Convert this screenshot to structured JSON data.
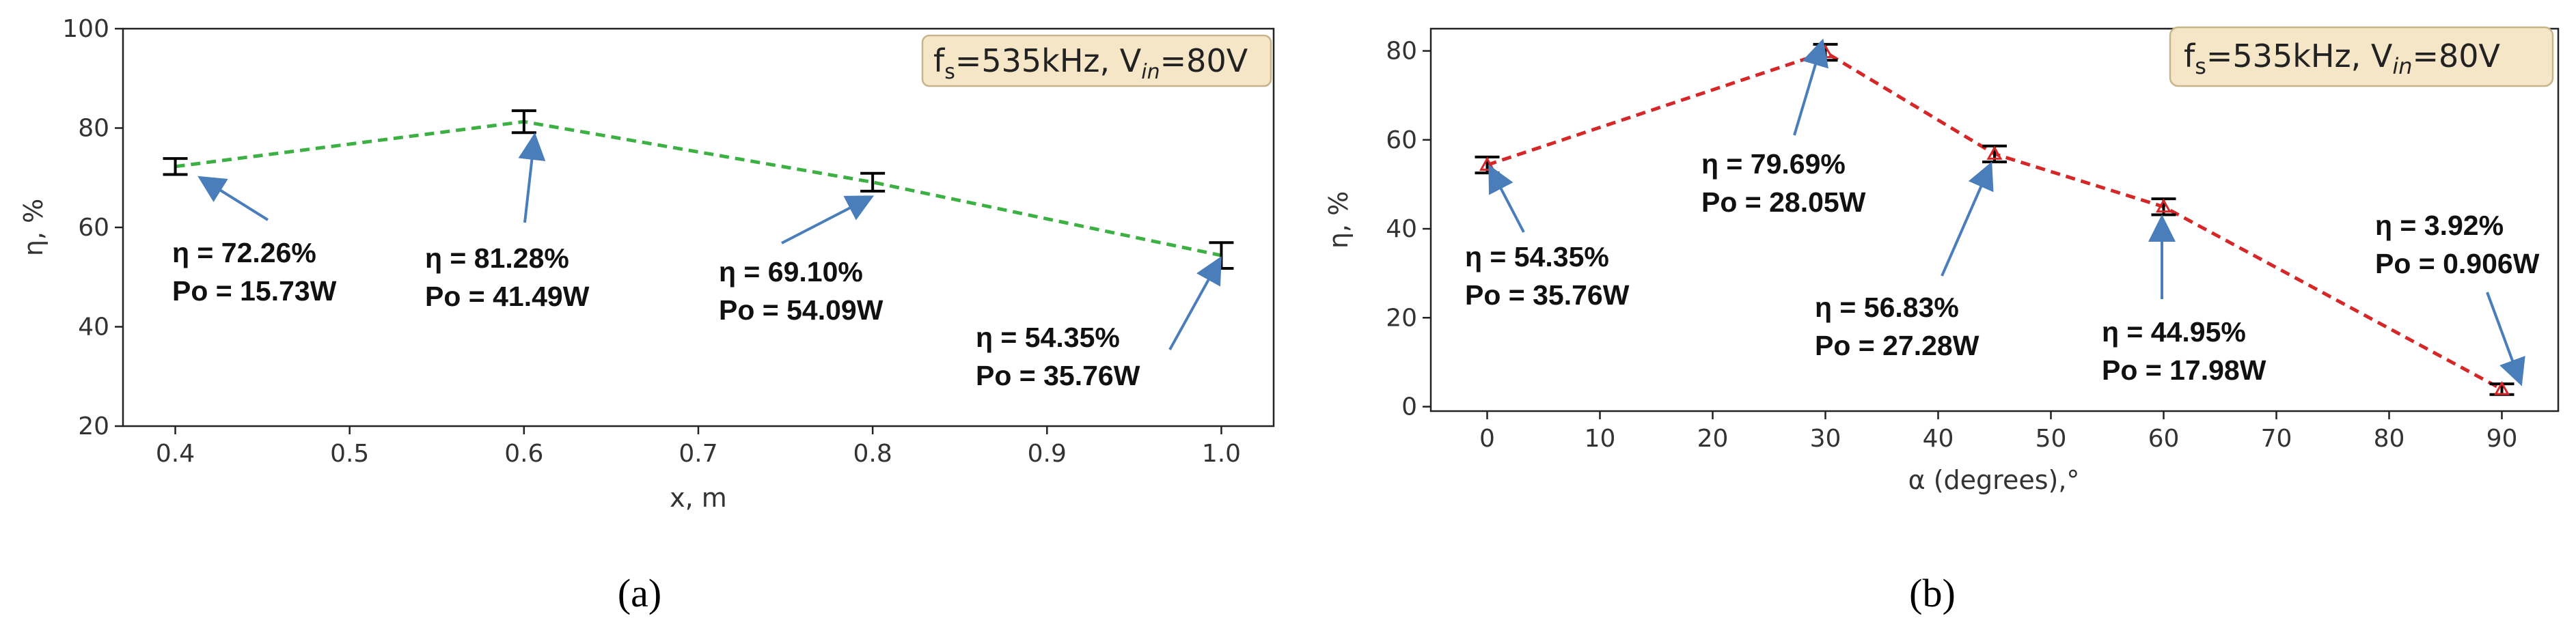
{
  "chart_data": [
    {
      "type": "line",
      "panel_label": "a",
      "info_box": "fs=535kHz, Vin=80V",
      "info_parts": {
        "f": "f",
        "f_sub": "s",
        "f_val": "=535kHz, V",
        "v_sub": "in",
        "v_val": "=80V"
      },
      "xlabel": "x, m",
      "ylabel": "η, %",
      "xlim": [
        0.37,
        1.03
      ],
      "ylim": [
        20,
        100
      ],
      "xticks": [
        0.4,
        0.5,
        0.6,
        0.7,
        0.8,
        0.9,
        1.0
      ],
      "xtick_labels": [
        "0.4",
        "0.5",
        "0.6",
        "0.7",
        "0.8",
        "0.9",
        "1.0"
      ],
      "yticks": [
        20,
        40,
        60,
        80,
        100
      ],
      "ytick_labels": [
        "20",
        "40",
        "60",
        "80",
        "100"
      ],
      "line_color": "#3cb043",
      "errorbar_color": "#000000",
      "series": [
        {
          "name": "efficiency",
          "points": [
            {
              "x": 0.4,
              "y": 72.26,
              "err": 1.6
            },
            {
              "x": 0.6,
              "y": 81.28,
              "err": 2.2
            },
            {
              "x": 0.8,
              "y": 69.1,
              "err": 1.8
            },
            {
              "x": 1.0,
              "y": 54.35,
              "err": 2.6
            }
          ]
        }
      ],
      "annotations": [
        {
          "eta": "η = 72.26%",
          "po": "Po = 15.73W"
        },
        {
          "eta": "η = 81.28%",
          "po": "Po = 41.49W"
        },
        {
          "eta": "η = 69.10%",
          "po": "Po = 54.09W"
        },
        {
          "eta": "η = 54.35%",
          "po": "Po = 35.76W"
        }
      ]
    },
    {
      "type": "line",
      "panel_label": "b",
      "info_box": "fs=535kHz, Vin=80V",
      "info_parts": {
        "f": "f",
        "f_sub": "s",
        "f_val": "=535kHz, V",
        "v_sub": "in",
        "v_val": "=80V"
      },
      "xlabel": "α (degrees),°",
      "ylabel": "η, %",
      "xlim": [
        -5,
        95
      ],
      "ylim": [
        -1,
        85
      ],
      "xticks": [
        0,
        10,
        20,
        30,
        40,
        50,
        60,
        70,
        80,
        90
      ],
      "xtick_labels": [
        "0",
        "10",
        "20",
        "30",
        "40",
        "50",
        "60",
        "70",
        "80",
        "90"
      ],
      "yticks": [
        0,
        20,
        40,
        60,
        80
      ],
      "ytick_labels": [
        "0",
        "20",
        "40",
        "60",
        "80"
      ],
      "line_color": "#d62728",
      "errorbar_color": "#000000",
      "series": [
        {
          "name": "efficiency",
          "points": [
            {
              "x": 0,
              "y": 54.35,
              "err": 1.8
            },
            {
              "x": 30,
              "y": 79.69,
              "err": 1.8
            },
            {
              "x": 45,
              "y": 56.83,
              "err": 1.8
            },
            {
              "x": 60,
              "y": 44.95,
              "err": 1.8
            },
            {
              "x": 90,
              "y": 3.92,
              "err": 1.2
            }
          ]
        }
      ],
      "annotations": [
        {
          "eta": "η = 54.35%",
          "po": "Po = 35.76W"
        },
        {
          "eta": "η = 79.69%",
          "po": "Po = 28.05W"
        },
        {
          "eta": "η = 56.83%",
          "po": "Po = 27.28W"
        },
        {
          "eta": "η = 44.95%",
          "po": "Po = 17.98W"
        },
        {
          "eta": "η = 3.92%",
          "po": "Po = 0.906W"
        }
      ]
    }
  ],
  "captions": [
    "(a)",
    "(b)"
  ],
  "colors": {
    "arrow": "#4a7ebb",
    "info_fill": "#f5e6c8",
    "info_stroke": "#c8b48a"
  }
}
